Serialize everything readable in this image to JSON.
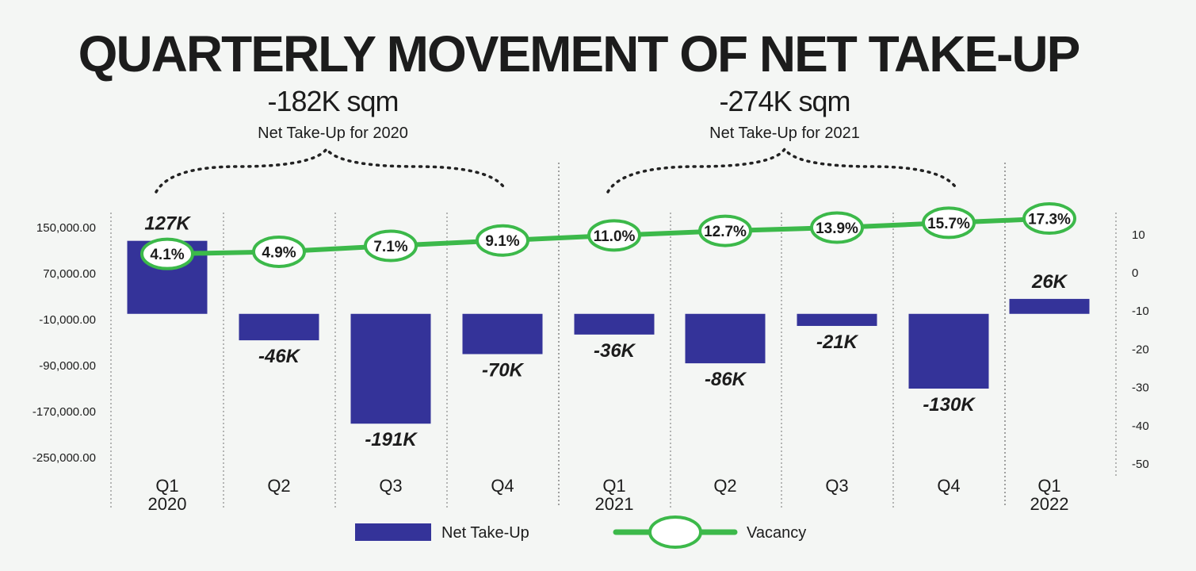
{
  "chart_data": {
    "type": "bar",
    "title": "QUARTERLY MOVEMENT OF NET TAKE-UP",
    "categories": [
      {
        "quarter": "Q1",
        "year": "2020"
      },
      {
        "quarter": "Q2",
        "year": ""
      },
      {
        "quarter": "Q3",
        "year": ""
      },
      {
        "quarter": "Q4",
        "year": ""
      },
      {
        "quarter": "Q1",
        "year": "2021"
      },
      {
        "quarter": "Q2",
        "year": ""
      },
      {
        "quarter": "Q3",
        "year": ""
      },
      {
        "quarter": "Q4",
        "year": ""
      },
      {
        "quarter": "Q1",
        "year": "2022"
      }
    ],
    "series": [
      {
        "name": "Net Take-Up",
        "type": "bar",
        "color": "#343399",
        "values": [
          127000,
          -46000,
          -191000,
          -70000,
          -36000,
          -86000,
          -21000,
          -130000,
          26000
        ],
        "labels": [
          "127K",
          "-46K",
          "-191K",
          "-70K",
          "-36K",
          "-86K",
          "-21K",
          "-130K",
          "26K"
        ]
      },
      {
        "name": "Vacancy",
        "type": "line",
        "color": "#3cb94a",
        "values": [
          4.1,
          4.9,
          7.1,
          9.1,
          11.0,
          12.7,
          13.9,
          15.7,
          17.3
        ],
        "labels": [
          "4.1%",
          "4.9%",
          "7.1%",
          "9.1%",
          "11.0%",
          "12.7%",
          "13.9%",
          "15.7%",
          "17.3%"
        ]
      }
    ],
    "y_left": {
      "ticks": [
        150000,
        70000,
        -10000,
        -90000,
        -170000,
        -250000
      ],
      "tick_labels": [
        "150,000.00",
        "70,000.00",
        "-10,000.00",
        "-90,000.00",
        "-170,000.00",
        "-250,000.00"
      ]
    },
    "y_right": {
      "ticks": [
        10,
        0,
        -10,
        -20,
        -30,
        -40,
        -50
      ],
      "tick_labels": [
        "10",
        "0",
        "-10",
        "-20",
        "-30",
        "-40",
        "-50"
      ]
    },
    "annotations": [
      {
        "value": "-182K sqm",
        "label": "Net Take-Up for 2020",
        "span": [
          0,
          3
        ]
      },
      {
        "value": "-274K sqm",
        "label": "Net Take-Up for 2021",
        "span": [
          4,
          7
        ]
      }
    ],
    "legend": {
      "position": "bottom",
      "items": [
        {
          "label": "Net Take-Up",
          "marker": "bar"
        },
        {
          "label": "Vacancy",
          "marker": "line"
        }
      ]
    },
    "grid": false
  }
}
